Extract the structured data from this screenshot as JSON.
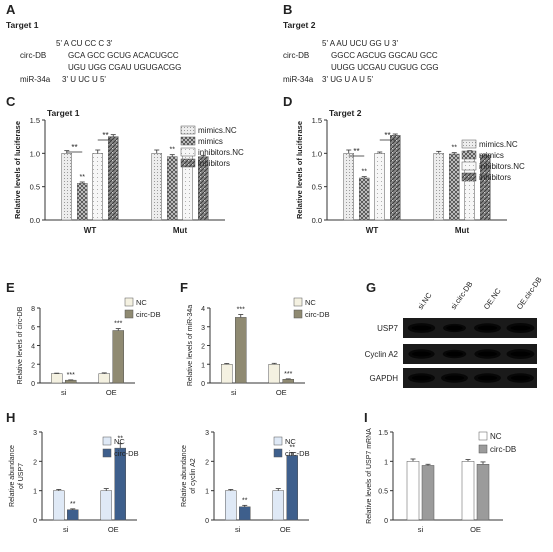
{
  "panels": {
    "A": {
      "letter": "A",
      "title": "Target 1",
      "rows": [
        {
          "label": "",
          "text": "5' A    CU            CC          C 3'"
        },
        {
          "label": "circ-DB",
          "text": "GCA   GCC GCUG  ACACUGCC"
        },
        {
          "label": "",
          "text": "UGU   UGG CGAU  UGUGACGG"
        },
        {
          "label": "miR-34a",
          "text": "3'                U      UC          U 5'"
        }
      ]
    },
    "B": {
      "letter": "B",
      "title": "Target 2",
      "rows": [
        {
          "label": "",
          "text": "5' A       AU        UCU        GG    U 3'"
        },
        {
          "label": "circ-DB",
          "text": "GGCC     AGCUG     GGCAU    GCC"
        },
        {
          "label": "",
          "text": "UUGG     UCGAU     CUGUG    CGG"
        },
        {
          "label": "miR-34a",
          "text": "3' UG         U                 A     U 5'"
        }
      ]
    }
  },
  "legends": {
    "luc": [
      "mimics.NC",
      "mimics",
      "inhibitors.NC",
      "inhibitors"
    ],
    "nc_circ": [
      "NC",
      "circ-DB"
    ]
  },
  "western": {
    "letter": "G",
    "lanes": [
      "si.NC",
      "si.circ-DB",
      "OE.NC",
      "OE.circ-DB"
    ],
    "proteins": [
      "USP7",
      "Cyclin A2",
      "GAPDH"
    ]
  },
  "chart_data": [
    {
      "panel": "C",
      "title": "Target 1",
      "type": "bar",
      "categories": [
        "WT",
        "Mut"
      ],
      "ylabel": "Relative levels of luciferase",
      "ylim": [
        0,
        1.5
      ],
      "yticks": [
        0,
        0.5,
        1.0,
        1.5
      ],
      "series": [
        {
          "name": "mimics.NC",
          "values": [
            1.0,
            1.0
          ],
          "err": [
            0.04,
            0.05
          ]
        },
        {
          "name": "mimics",
          "values": [
            0.55,
            0.95
          ],
          "err": [
            0.02,
            0.03
          ]
        },
        {
          "name": "inhibitors.NC",
          "values": [
            1.0,
            1.0
          ],
          "err": [
            0.05,
            0.04
          ]
        },
        {
          "name": "inhibitors",
          "values": [
            1.25,
            0.95
          ],
          "err": [
            0.03,
            0.02
          ]
        }
      ],
      "sig": [
        "**",
        "**"
      ]
    },
    {
      "panel": "D",
      "title": "Target 2",
      "type": "bar",
      "categories": [
        "WT",
        "Mut"
      ],
      "ylabel": "Relative levels of luciferase",
      "ylim": [
        0,
        1.5
      ],
      "yticks": [
        0,
        0.5,
        1.0,
        1.5
      ],
      "series": [
        {
          "name": "mimics.NC",
          "values": [
            1.0,
            1.0
          ],
          "err": [
            0.05,
            0.03
          ]
        },
        {
          "name": "mimics",
          "values": [
            0.63,
            0.99
          ],
          "err": [
            0.02,
            0.02
          ]
        },
        {
          "name": "inhibitors.NC",
          "values": [
            1.0,
            1.0
          ],
          "err": [
            0.02,
            0.04
          ]
        },
        {
          "name": "inhibitors",
          "values": [
            1.27,
            0.97
          ],
          "err": [
            0.02,
            0.02
          ]
        }
      ],
      "sig": [
        "**",
        "**"
      ]
    },
    {
      "panel": "E",
      "type": "bar",
      "categories": [
        "si",
        "OE"
      ],
      "ylabel": "Relative levels of circ-DB",
      "ylim": [
        0,
        8
      ],
      "yticks": [
        0,
        2,
        4,
        6,
        8
      ],
      "series": [
        {
          "name": "NC",
          "values": [
            1.0,
            1.0
          ],
          "err": [
            0.05,
            0.08
          ]
        },
        {
          "name": "circ-DB",
          "values": [
            0.3,
            5.6
          ],
          "err": [
            0.03,
            0.2
          ]
        }
      ],
      "sig": [
        "***",
        "***"
      ]
    },
    {
      "panel": "F",
      "type": "bar",
      "categories": [
        "si",
        "OE"
      ],
      "ylabel": "Relative levels of miR-34a",
      "ylim": [
        0,
        4
      ],
      "yticks": [
        0,
        1,
        2,
        3,
        4
      ],
      "series": [
        {
          "name": "NC",
          "values": [
            1.0,
            1.0
          ],
          "err": [
            0.04,
            0.05
          ]
        },
        {
          "name": "circ-DB",
          "values": [
            3.5,
            0.2
          ],
          "err": [
            0.15,
            0.02
          ]
        }
      ],
      "sig": [
        "***",
        "***"
      ]
    },
    {
      "panel": "H",
      "type": "bar",
      "categories": [
        "si",
        "OE"
      ],
      "ylabel": "Relative abundance of USP7",
      "ylim": [
        0,
        3
      ],
      "yticks": [
        0,
        1,
        2,
        3
      ],
      "series": [
        {
          "name": "NC",
          "values": [
            1.0,
            1.0
          ],
          "err": [
            0.04,
            0.07
          ]
        },
        {
          "name": "circ-DB",
          "values": [
            0.35,
            2.45
          ],
          "err": [
            0.03,
            0.15
          ]
        }
      ],
      "sig": [
        "**",
        "**"
      ]
    },
    {
      "panel": "",
      "type": "bar",
      "categories": [
        "si",
        "OE"
      ],
      "ylabel": "Relative abundance of cyclin A2",
      "ylim": [
        0,
        3
      ],
      "yticks": [
        0,
        1,
        2,
        3
      ],
      "series": [
        {
          "name": "NC",
          "values": [
            1.0,
            1.0
          ],
          "err": [
            0.04,
            0.07
          ]
        },
        {
          "name": "circ-DB",
          "values": [
            0.45,
            2.2
          ],
          "err": [
            0.05,
            0.1
          ]
        }
      ],
      "sig": [
        "**",
        "**"
      ]
    },
    {
      "panel": "I",
      "type": "bar",
      "categories": [
        "si",
        "OE"
      ],
      "ylabel": "Relative levels of USP7 mRNA",
      "ylim": [
        0,
        1.5
      ],
      "yticks": [
        0,
        0.5,
        1,
        1.5
      ],
      "series": [
        {
          "name": "NC",
          "values": [
            1.0,
            1.0
          ],
          "err": [
            0.04,
            0.03
          ]
        },
        {
          "name": "circ-DB",
          "values": [
            0.93,
            0.95
          ],
          "err": [
            0.02,
            0.04
          ]
        }
      ],
      "sig": []
    }
  ]
}
